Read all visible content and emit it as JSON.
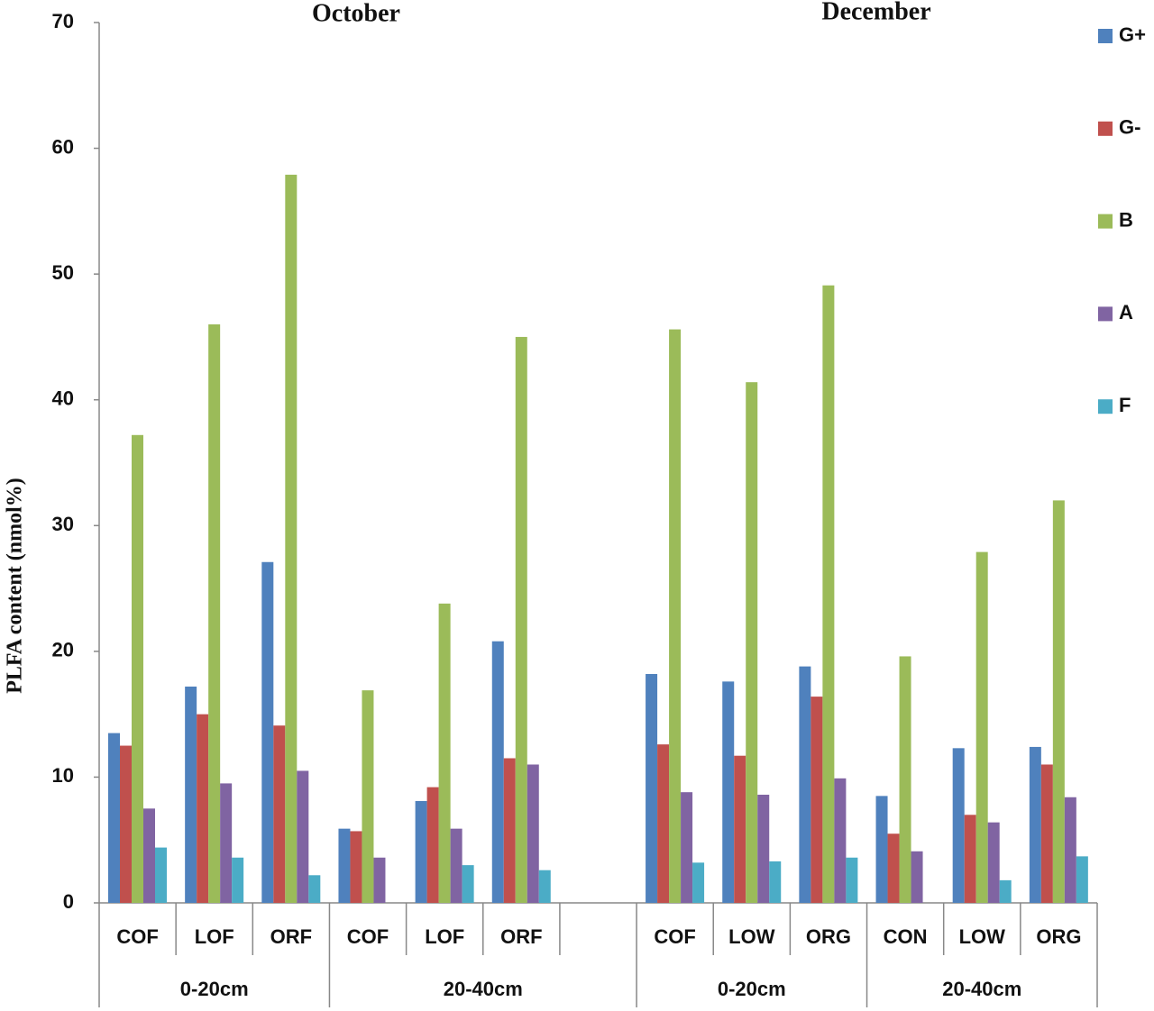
{
  "chart_data": {
    "type": "bar",
    "y_label": "PLFA content (nmol%)",
    "annotations": [
      "October",
      "December"
    ],
    "groups": [
      {
        "label": "0-20cm",
        "categories": [
          "COF",
          "LOF",
          "ORF"
        ]
      },
      {
        "label": "20-40cm",
        "categories": [
          "COF",
          "LOF",
          "ORF",
          null
        ]
      },
      {
        "label": "0-20cm",
        "categories": [
          "COF",
          "LOW",
          "ORG"
        ]
      },
      {
        "label": "20-40cm",
        "categories": [
          "CON",
          "LOW",
          "ORG"
        ]
      }
    ],
    "series": [
      {
        "name": "G+",
        "color": "#4f81bd",
        "values": [
          13.5,
          17.2,
          27.1,
          5.9,
          8.1,
          20.8,
          null,
          18.2,
          17.6,
          18.8,
          8.5,
          12.3,
          12.4
        ]
      },
      {
        "name": "G-",
        "color": "#c0504d",
        "values": [
          12.5,
          15.0,
          14.1,
          5.7,
          9.2,
          11.5,
          null,
          12.6,
          11.7,
          16.4,
          5.5,
          7.0,
          11.0
        ]
      },
      {
        "name": "B",
        "color": "#9bbb59",
        "values": [
          37.2,
          46.0,
          57.9,
          16.9,
          23.8,
          45.0,
          null,
          45.6,
          41.4,
          49.1,
          19.6,
          27.9,
          32.0
        ]
      },
      {
        "name": "A",
        "color": "#8064a2",
        "values": [
          7.5,
          9.5,
          10.5,
          3.6,
          5.9,
          11.0,
          null,
          8.8,
          8.6,
          9.9,
          4.1,
          6.4,
          8.4
        ]
      },
      {
        "name": "F",
        "color": "#4bacc6",
        "values": [
          4.4,
          3.6,
          2.2,
          null,
          3.0,
          2.6,
          null,
          3.2,
          3.3,
          3.6,
          null,
          1.8,
          3.7
        ]
      }
    ],
    "ylim": [
      0,
      70
    ],
    "yticks": [
      0,
      10,
      20,
      30,
      40,
      50,
      60,
      70
    ],
    "grid": false
  }
}
